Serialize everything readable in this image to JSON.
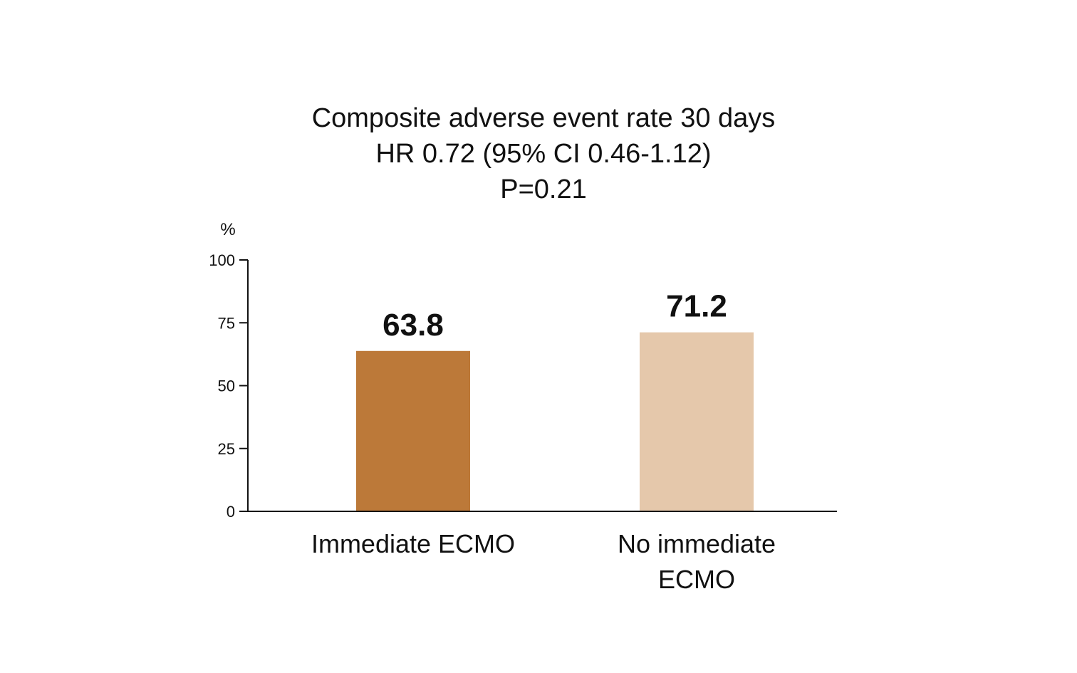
{
  "chart_data": {
    "type": "bar",
    "title": [
      "Composite adverse event rate 30 days",
      "HR 0.72 (95% CI 0.46-1.12)",
      "P=0.21"
    ],
    "ylabel": "%",
    "xlabel": "",
    "ylim": [
      0,
      100
    ],
    "yticks": [
      0,
      25,
      50,
      75,
      100
    ],
    "grid": false,
    "categories": [
      [
        "Immediate ECMO"
      ],
      [
        "No immediate",
        "ECMO"
      ]
    ],
    "values": [
      63.8,
      71.2
    ],
    "data_labels": [
      "63.8",
      "71.2"
    ],
    "colors": [
      "#BC7939",
      "#E5C8AB"
    ]
  }
}
